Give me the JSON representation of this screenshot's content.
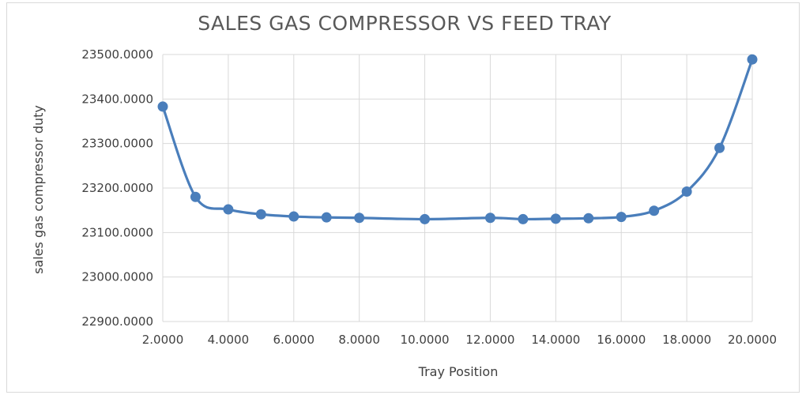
{
  "chart_data": {
    "type": "line",
    "title": "SALES GAS COMPRESSOR VS FEED TRAY",
    "xlabel": "Tray Position",
    "ylabel": "sales gas compressor duty",
    "xlim": [
      2,
      20
    ],
    "ylim": [
      22900,
      23500
    ],
    "xticks": [
      "2.0000",
      "4.0000",
      "6.0000",
      "8.0000",
      "10.0000",
      "12.0000",
      "14.0000",
      "16.0000",
      "18.0000",
      "20.0000"
    ],
    "yticks": [
      "23500.0000",
      "23400.0000",
      "23300.0000",
      "23200.0000",
      "23100.0000",
      "23000.0000",
      "22900.0000"
    ],
    "grid": true,
    "smooth": true,
    "series_color": "#4a7ebb",
    "series": [
      {
        "x": [
          2,
          3,
          4,
          5,
          6,
          7,
          8,
          10,
          12,
          13,
          14,
          15,
          16,
          17,
          18,
          19,
          20
        ],
        "values": [
          23383,
          23180,
          23152,
          23141,
          23136,
          23134,
          23133,
          23130,
          23133,
          23130,
          23131,
          23132,
          23135,
          23149,
          23192,
          23290,
          23489
        ]
      }
    ]
  }
}
